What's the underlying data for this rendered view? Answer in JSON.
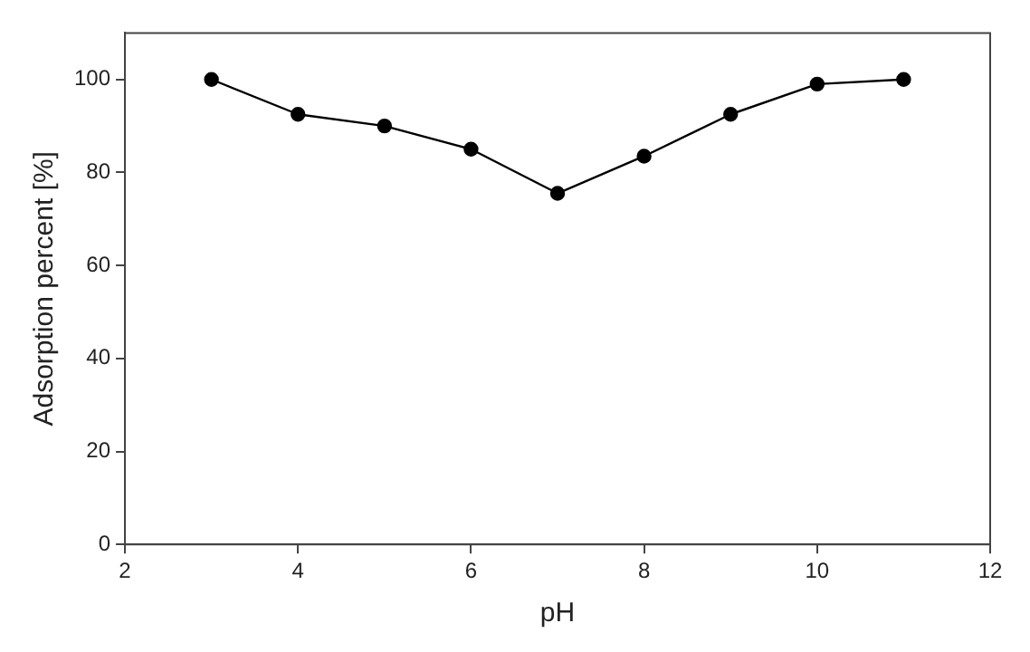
{
  "chart_data": {
    "type": "line",
    "xlabel": "pH",
    "ylabel": "Adsorption percent [%]",
    "x": [
      3,
      4,
      5,
      6,
      7,
      8,
      9,
      10,
      11
    ],
    "series": [
      {
        "color": "#000000",
        "values": [
          100,
          92.5,
          90,
          85,
          75.5,
          83.5,
          92.5,
          99,
          100
        ]
      }
    ],
    "xlim": [
      2,
      12
    ],
    "xticks": [
      2,
      4,
      6,
      8,
      10,
      12
    ],
    "ylim": [
      0,
      110
    ],
    "yticks": [
      0,
      20,
      40,
      60,
      80,
      100
    ],
    "grid": false,
    "legend": false,
    "marker": "circle",
    "line_style": "solid"
  }
}
